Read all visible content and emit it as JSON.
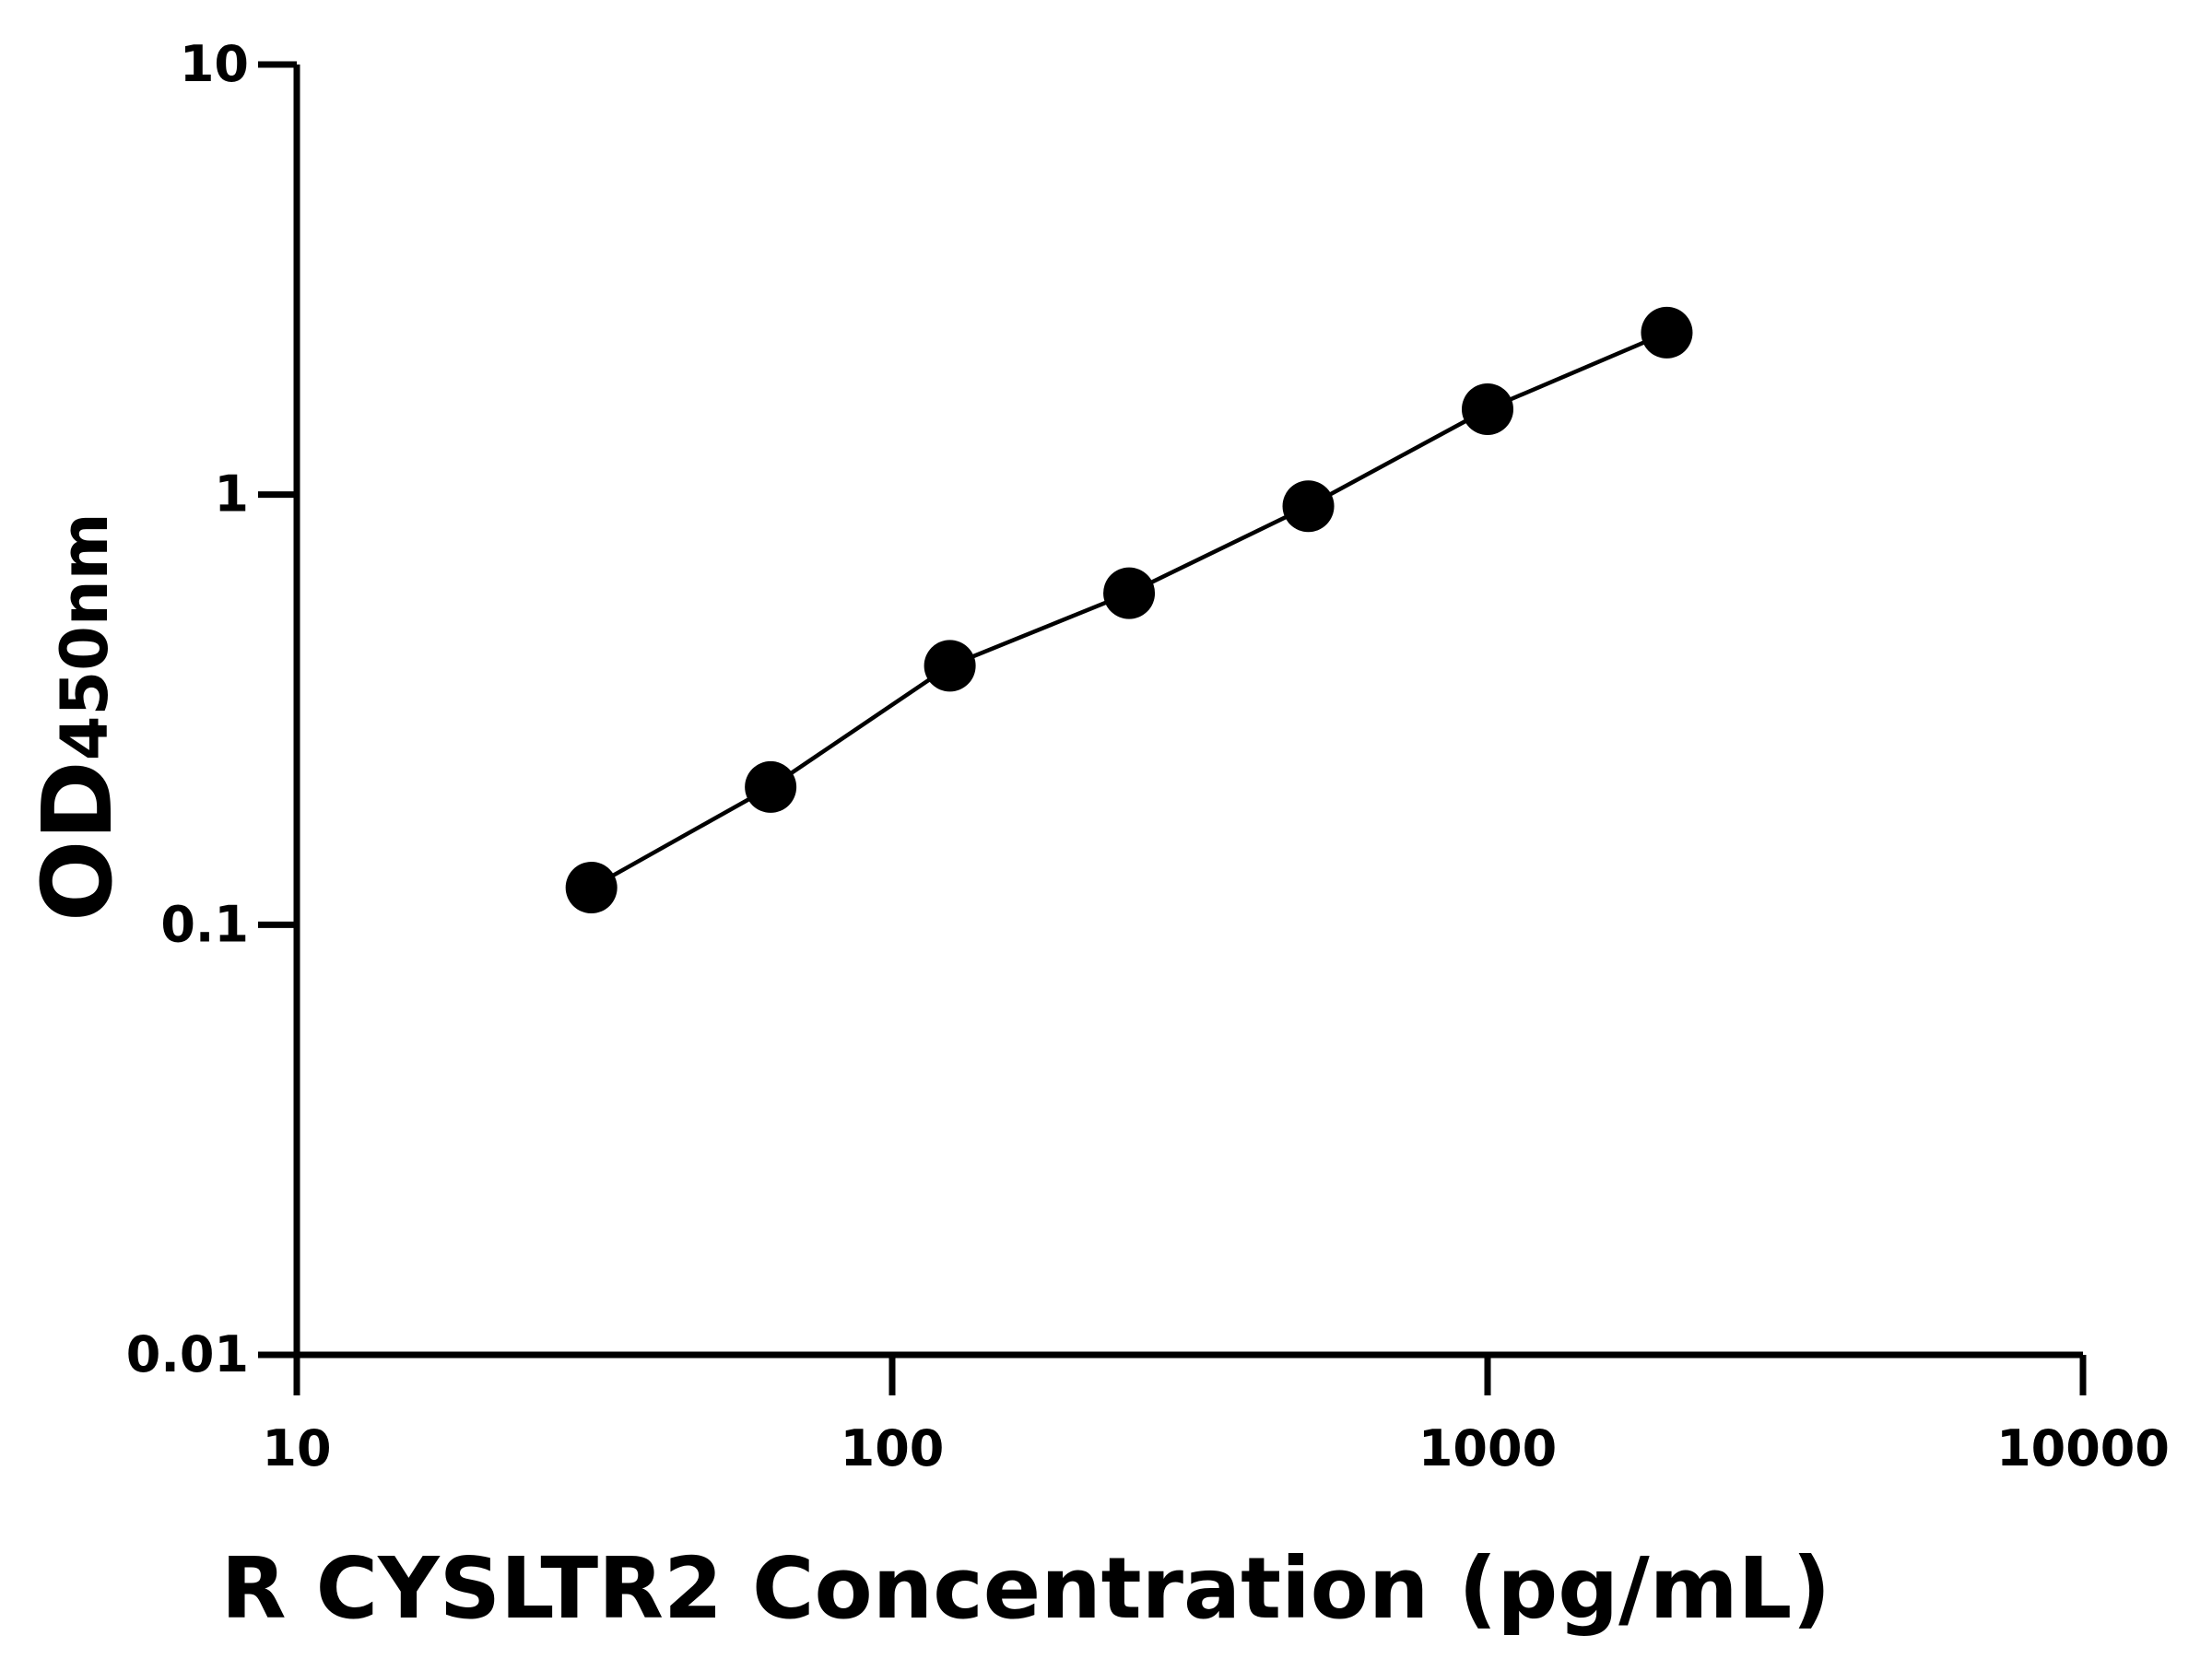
{
  "chart_data": {
    "type": "scatter",
    "xlabel": "R CYSLTR2 Concentration (pg/mL)",
    "ylabel": "OD",
    "ylabel_sub": "450nm",
    "x": [
      31.25,
      62.5,
      125,
      250,
      500,
      1000,
      2000
    ],
    "series": [
      {
        "color": "#000000",
        "values": [
          0.122,
          0.209,
          0.4,
          0.59,
          0.94,
          1.58,
          2.38
        ]
      }
    ],
    "xlim": [
      10,
      10000
    ],
    "xticks": [
      10,
      100,
      1000,
      10000
    ],
    "ylim": [
      0.01,
      10
    ],
    "yticks": [
      0.01,
      0.1,
      1,
      10
    ],
    "xscale": "log",
    "yscale": "log",
    "line": true,
    "grid": false
  }
}
